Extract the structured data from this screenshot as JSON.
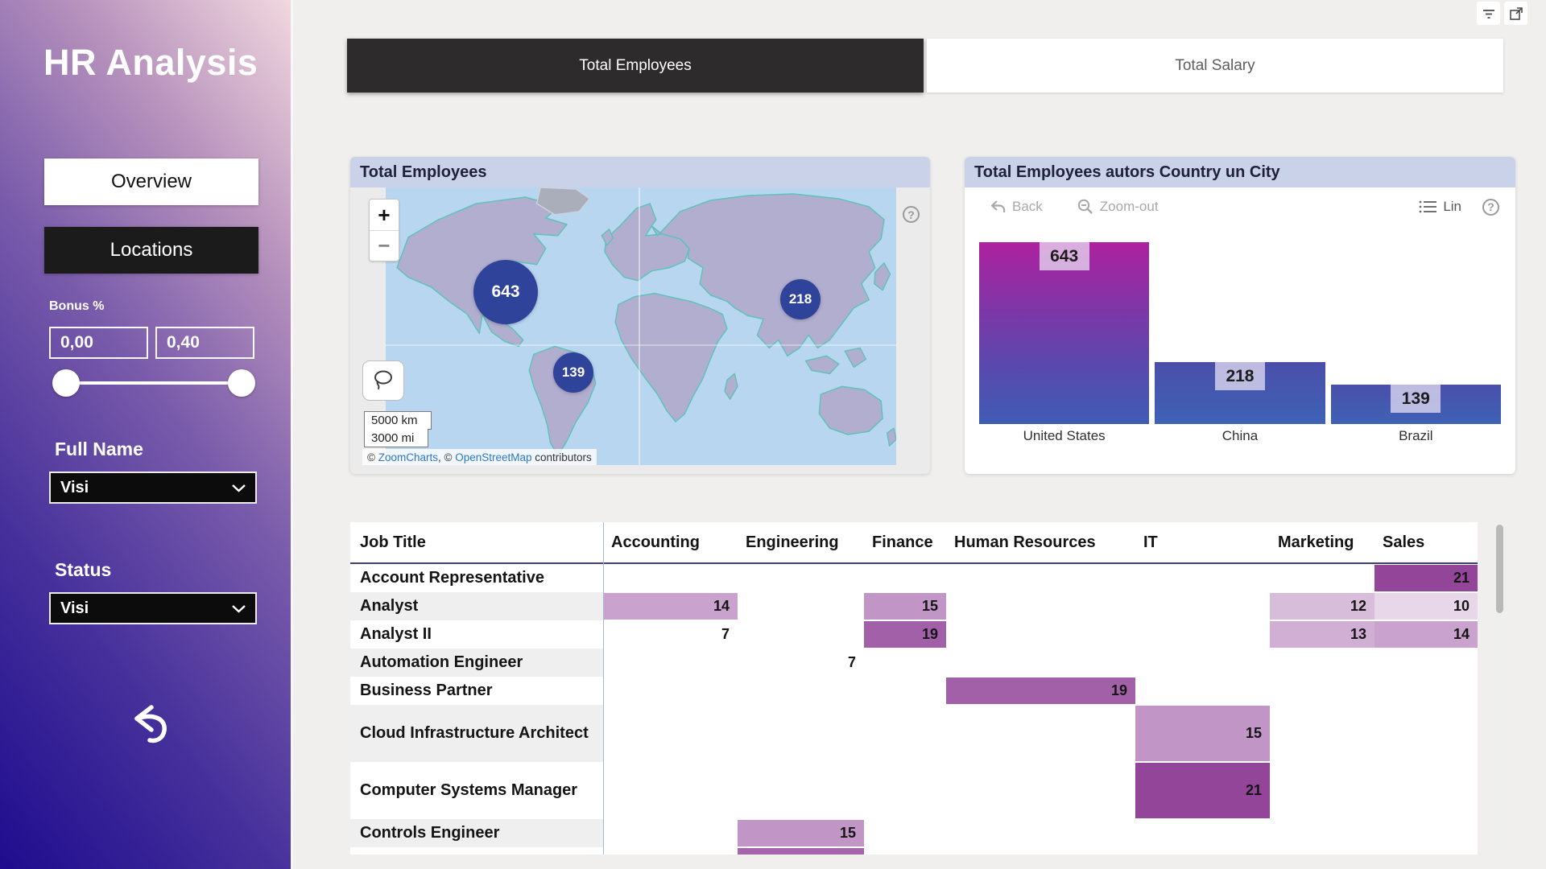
{
  "colors": {
    "accent_header": "#c9d2e8",
    "bubble_fill": "#2e4399",
    "active_tab_bg": "#2d2b2b",
    "sidebar_gradient_from": "#1f0c8e",
    "sidebar_gradient_to": "#f1d8de",
    "bar_gradient_top": "#ad219f",
    "bar_gradient_bottom": "#3f5cb4",
    "heat_min": "#ffffff",
    "heat_max": "#93459a",
    "link_blue": "#2e77c5"
  },
  "sidebar": {
    "title": "HR Analysis",
    "buttons": [
      {
        "label": "Overview"
      },
      {
        "label": "Locations"
      }
    ],
    "bonus_label": "Bonus %",
    "bonus_min": "0,00",
    "bonus_max": "0,40",
    "full_name_label": "Full Name",
    "full_name_value": "Visi",
    "status_label": "Status",
    "status_value": "Visi"
  },
  "tabs": [
    {
      "label": "Total Employees",
      "active": true
    },
    {
      "label": "Total Salary",
      "active": false
    }
  ],
  "map_card": {
    "title": "Total Employees",
    "zoom_in": "+",
    "zoom_out": "−",
    "scale_km": "5000 km",
    "scale_mi": "3000 mi",
    "attribution": {
      "c1": "© ",
      "link1": "ZoomCharts",
      "mid": ", © ",
      "link2": "OpenStreetMap",
      "suffix": " contributors"
    },
    "help_label": "?"
  },
  "bar_card": {
    "title": "Total Employees autors Country un City",
    "back_label": "Back",
    "zoomout_label": "Zoom-out",
    "lin_label": "Lin",
    "help_label": "?"
  },
  "chart_data": [
    {
      "type": "map-bubbles",
      "title": "Total Employees",
      "points": [
        {
          "label": "United States",
          "value": 643
        },
        {
          "label": "China",
          "value": 218
        },
        {
          "label": "Brazil",
          "value": 139
        }
      ]
    },
    {
      "type": "bar",
      "title": "Total Employees autors Country un City",
      "categories": [
        "United States",
        "China",
        "Brazil"
      ],
      "values": [
        643,
        218,
        139
      ],
      "ylim": [
        0,
        643
      ],
      "value_labels": true,
      "legend": "none",
      "grid": false
    },
    {
      "type": "heatmap",
      "title": "Employees by Job Title and Department",
      "columns": [
        "Job Title",
        "Accounting",
        "Engineering",
        "Finance",
        "Human Resources",
        "IT",
        "Marketing",
        "Sales"
      ],
      "rows": [
        {
          "label": "Account Representative",
          "values": [
            null,
            null,
            null,
            null,
            null,
            null,
            21
          ]
        },
        {
          "label": "Analyst",
          "values": [
            14,
            null,
            15,
            null,
            null,
            12,
            10
          ]
        },
        {
          "label": "Analyst II",
          "values": [
            7,
            null,
            19,
            null,
            null,
            13,
            14
          ]
        },
        {
          "label": "Automation Engineer",
          "values": [
            null,
            7,
            null,
            null,
            null,
            null,
            null
          ]
        },
        {
          "label": "Business Partner",
          "values": [
            null,
            null,
            null,
            19,
            null,
            null,
            null
          ]
        },
        {
          "label": "Cloud Infrastructure Architect",
          "values": [
            null,
            null,
            null,
            null,
            15,
            null,
            null
          ]
        },
        {
          "label": "Computer Systems Manager",
          "values": [
            null,
            null,
            null,
            null,
            21,
            null,
            null
          ]
        },
        {
          "label": "Controls Engineer",
          "values": [
            null,
            15,
            null,
            null,
            null,
            null,
            null
          ]
        }
      ],
      "heat_domain": [
        7,
        21
      ],
      "heat_colors": [
        "#ffffff",
        "#93459a"
      ]
    }
  ]
}
